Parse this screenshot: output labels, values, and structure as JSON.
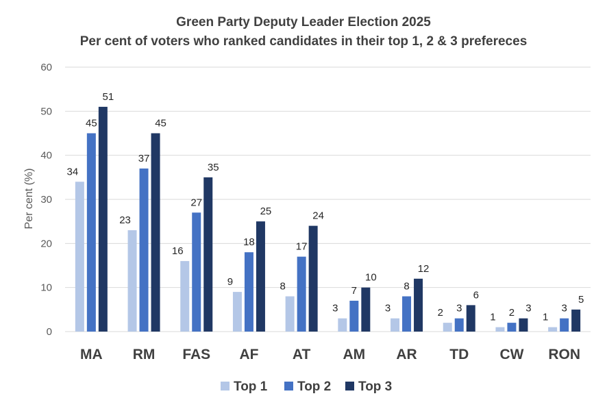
{
  "chart_data": {
    "type": "bar",
    "title": "Green Party Deputy Leader Election 2025",
    "subtitle": "Per cent of voters who ranked candidates in their top 1, 2 & 3 prefereces",
    "xlabel": "",
    "ylabel": "Per cent (%)",
    "ylim": [
      0,
      60
    ],
    "yticks": [
      0,
      10,
      20,
      30,
      40,
      50,
      60
    ],
    "grid": true,
    "legend_position": "bottom",
    "categories": [
      "MA",
      "RM",
      "FAS",
      "AF",
      "AT",
      "AM",
      "AR",
      "TD",
      "CW",
      "RON"
    ],
    "series": [
      {
        "name": "Top 1",
        "color": "#b4c7e7",
        "values": [
          34,
          23,
          16,
          9,
          8,
          3,
          3,
          2,
          1,
          1
        ]
      },
      {
        "name": "Top 2",
        "color": "#4472c4",
        "values": [
          45,
          37,
          27,
          18,
          17,
          7,
          8,
          3,
          2,
          3
        ]
      },
      {
        "name": "Top 3",
        "color": "#203864",
        "values": [
          51,
          45,
          35,
          25,
          24,
          10,
          12,
          6,
          3,
          5
        ]
      }
    ]
  }
}
